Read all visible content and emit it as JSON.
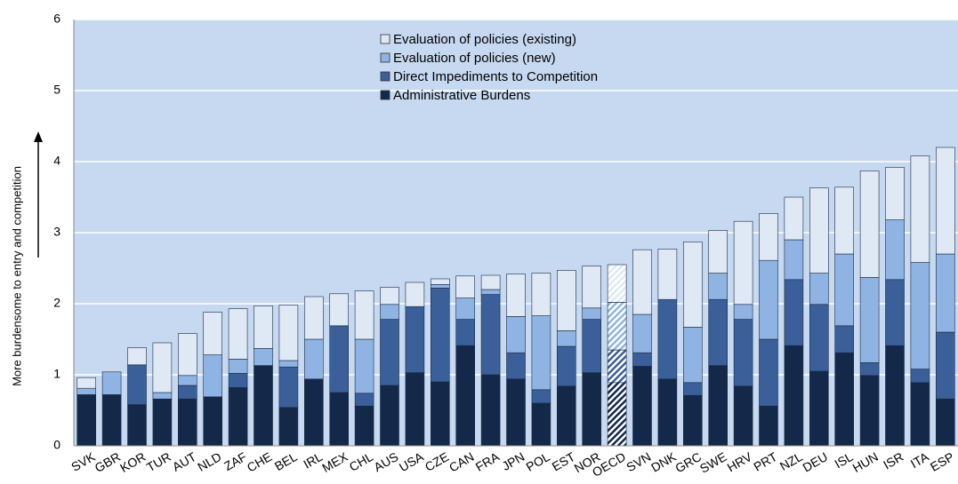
{
  "chart_data": {
    "type": "bar",
    "stacked": true,
    "y_label": "More burdensome to entry and competition",
    "categories": [
      "SVK",
      "GBR",
      "KOR",
      "TUR",
      "AUT",
      "NLD",
      "ZAF",
      "CHE",
      "BEL",
      "IRL",
      "MEX",
      "CHL",
      "AUS",
      "USA",
      "CZE",
      "CAN",
      "FRA",
      "JPN",
      "POL",
      "EST",
      "NOR",
      "OECD",
      "SVN",
      "DNK",
      "GRC",
      "SWE",
      "HRV",
      "PRT",
      "NZL",
      "DEU",
      "ISL",
      "HUN",
      "ISR",
      "ITA",
      "ESP"
    ],
    "hatched": [
      "OECD"
    ],
    "series": [
      {
        "name": "Administrative Burdens",
        "color": "#14284a",
        "values": [
          0.72,
          0.72,
          0.58,
          0.66,
          0.66,
          0.69,
          0.82,
          1.13,
          0.54,
          0.94,
          0.75,
          0.56,
          0.85,
          1.03,
          0.9,
          1.41,
          1.0,
          0.94,
          0.6,
          0.84,
          1.03,
          0.89,
          1.12,
          0.94,
          0.71,
          1.13,
          0.84,
          0.56,
          1.41,
          1.05,
          1.31,
          0.99,
          1.41,
          0.89,
          0.66
        ]
      },
      {
        "name": "Direct Impediments to Competition",
        "color": "#3a5f99",
        "values": [
          0,
          0,
          0.56,
          0,
          0.19,
          0,
          0.2,
          0,
          0.57,
          0,
          0.94,
          0.18,
          0.93,
          0.93,
          1.32,
          0.37,
          1.13,
          0.37,
          0.19,
          0.56,
          0.75,
          0.46,
          0.19,
          1.12,
          0.18,
          0.93,
          0.94,
          0.94,
          0.93,
          0.94,
          0.38,
          0.18,
          0.93,
          0.19,
          0.94
        ]
      },
      {
        "name": "Evaluation of policies (new)",
        "color": "#8fb4e3",
        "values": [
          0.09,
          0.32,
          0,
          0.09,
          0.14,
          0.59,
          0.2,
          0.24,
          0.09,
          0.56,
          0,
          0.76,
          0.21,
          0,
          0.05,
          0.3,
          0.07,
          0.51,
          1.04,
          0.22,
          0.16,
          0.67,
          0.54,
          0,
          0.78,
          0.37,
          0.21,
          1.11,
          0.56,
          0.44,
          1.01,
          1.2,
          0.84,
          1.5,
          1.1
        ]
      },
      {
        "name": "Evaluation of policies (existing)",
        "color": "#dfe8f5",
        "values": [
          0.15,
          0,
          0.24,
          0.7,
          0.59,
          0.6,
          0.71,
          0.6,
          0.78,
          0.6,
          0.45,
          0.68,
          0.24,
          0.34,
          0.08,
          0.31,
          0.2,
          0.6,
          0.6,
          0.85,
          0.59,
          0.53,
          0.91,
          0.71,
          1.2,
          0.6,
          1.17,
          0.66,
          0.6,
          1.2,
          0.94,
          1.5,
          0.74,
          1.5,
          1.5
        ]
      }
    ],
    "ylim": [
      0,
      6
    ],
    "yticks": [
      0,
      1,
      2,
      3,
      4,
      5,
      6
    ],
    "grid": true,
    "background": "#c6d9f1",
    "legend": "top"
  }
}
